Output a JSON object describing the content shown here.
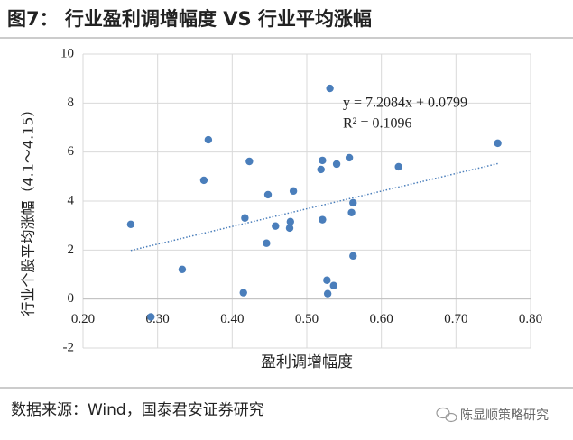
{
  "chart_data": {
    "type": "scatter",
    "title": "图7： 行业盈利调增幅度 VS 行业平均涨幅",
    "x_label": "盈利调增幅度",
    "y_label": "行业个股平均涨幅（4.1～4.15）",
    "source": "数据来源：Wind，国泰君安证券研究",
    "watermark": "陈显顺策略研究",
    "color": "#4a7ebb",
    "x": [
      0.264,
      0.291,
      0.333,
      0.362,
      0.368,
      0.415,
      0.417,
      0.423,
      0.446,
      0.448,
      0.458,
      0.477,
      0.478,
      0.482,
      0.521,
      0.519,
      0.521,
      0.527,
      0.528,
      0.531,
      0.536,
      0.54,
      0.557,
      0.56,
      0.562,
      0.562,
      0.623,
      0.756
    ],
    "values": [
      3.05,
      -0.73,
      1.21,
      4.85,
      6.5,
      0.26,
      3.31,
      5.62,
      2.28,
      4.26,
      2.98,
      2.9,
      3.16,
      4.41,
      5.66,
      5.29,
      3.24,
      0.77,
      0.22,
      8.6,
      0.55,
      5.51,
      5.77,
      3.53,
      3.93,
      1.76,
      5.4,
      6.36
    ],
    "trendline": {
      "x": [
        0.264,
        0.756
      ],
      "values": [
        1.983,
        5.53
      ],
      "color": "#4a7ebb"
    },
    "annotations": [
      "y = 7.2084x + 0.0799",
      "R² = 0.1096"
    ],
    "xlim": [
      0.2,
      0.8
    ],
    "xticks": [
      {
        "value": 0.2,
        "label": "0.20"
      },
      {
        "value": 0.3,
        "label": "0.30"
      },
      {
        "value": 0.4,
        "label": "0.40"
      },
      {
        "value": 0.5,
        "label": "0.50"
      },
      {
        "value": 0.6,
        "label": "0.60"
      },
      {
        "value": 0.7,
        "label": "0.70"
      },
      {
        "value": 0.8,
        "label": "0.80"
      }
    ],
    "ylim": [
      -2,
      10
    ],
    "yticks": [
      -2,
      0,
      2,
      4,
      6,
      8,
      10
    ],
    "grid": true
  }
}
